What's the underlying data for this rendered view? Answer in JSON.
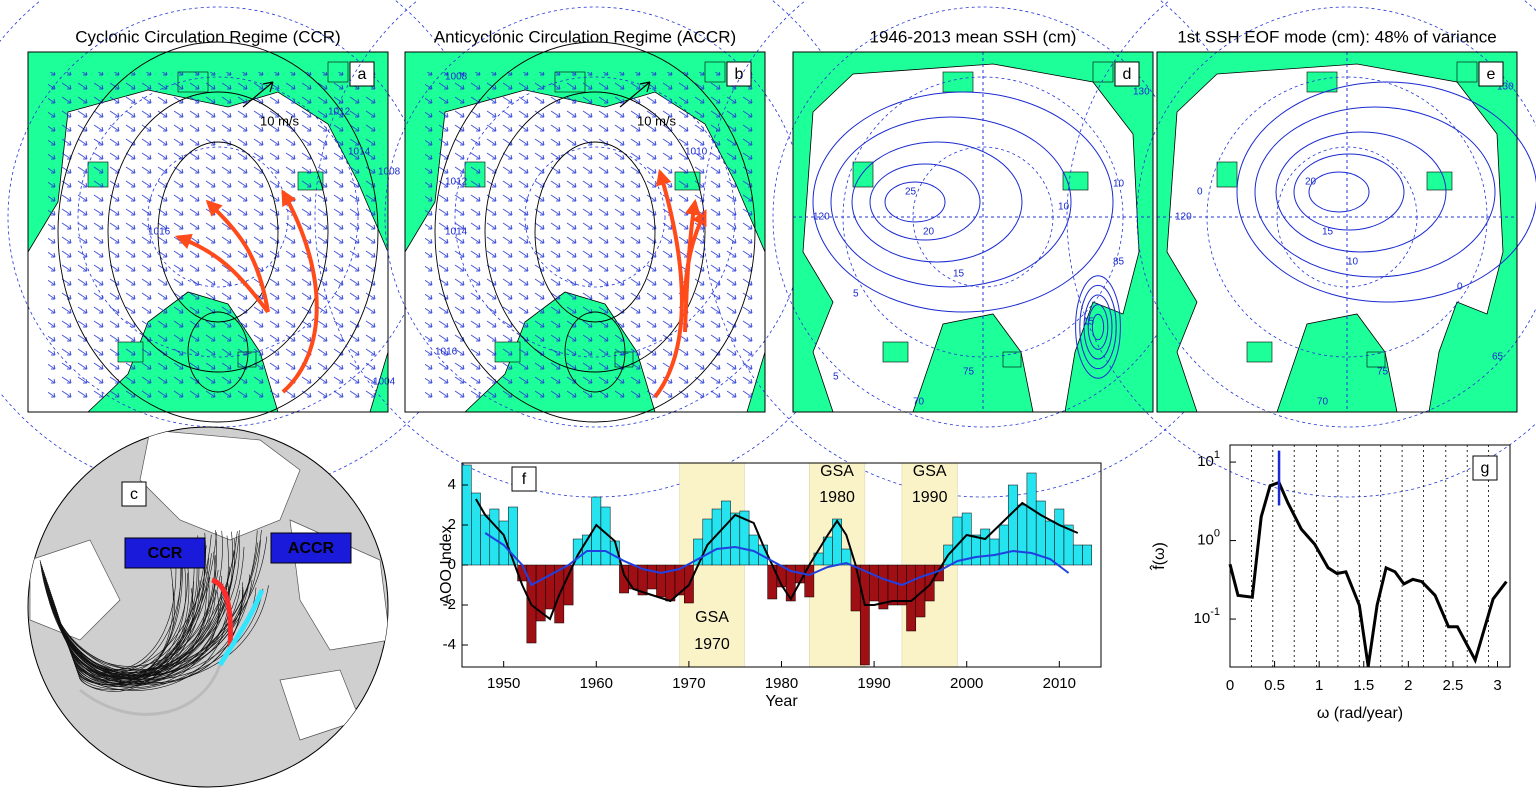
{
  "panels": {
    "a": {
      "title": "Cyclonic Circulation Regime (CCR)",
      "letter": "a",
      "scale_label": "10 m/s",
      "contour_labels": [
        "1012",
        "1016",
        "1008",
        "1004",
        "1014"
      ]
    },
    "b": {
      "title": "Anticyclonic Circulation Regime (ACCR)",
      "letter": "b",
      "scale_label": "10 m/s",
      "contour_labels": [
        "1008",
        "1012",
        "1014",
        "1016",
        "1010"
      ]
    },
    "d": {
      "title": "1946-2013 mean SSH (cm)",
      "letter": "d",
      "contour_labels": [
        "25",
        "20",
        "15",
        "10",
        "10",
        "5",
        "15",
        "5",
        "75",
        "70",
        "130",
        "120",
        "85"
      ]
    },
    "e": {
      "title": "1st SSH EOF mode (cm): 48% of variance",
      "letter": "e",
      "contour_labels": [
        "20",
        "15",
        "10",
        "0",
        "0",
        "75",
        "70",
        "65",
        "130",
        "120"
      ]
    },
    "c": {
      "letter": "c",
      "labels": [
        {
          "text": "CCR",
          "color": "#ff2a2a"
        },
        {
          "text": "ACCR",
          "color": "#33e6ff"
        }
      ]
    }
  },
  "chart_data": [
    {
      "type": "bar",
      "letter": "f",
      "xlabel": "Year",
      "ylabel": "AOO Index",
      "x": [
        1946,
        1947,
        1948,
        1949,
        1950,
        1951,
        1952,
        1953,
        1954,
        1955,
        1956,
        1957,
        1958,
        1959,
        1960,
        1961,
        1962,
        1963,
        1964,
        1965,
        1966,
        1967,
        1968,
        1969,
        1970,
        1971,
        1972,
        1973,
        1974,
        1975,
        1976,
        1977,
        1978,
        1979,
        1980,
        1981,
        1982,
        1983,
        1984,
        1985,
        1986,
        1987,
        1988,
        1989,
        1990,
        1991,
        1992,
        1993,
        1994,
        1995,
        1996,
        1997,
        1998,
        1999,
        2000,
        2001,
        2002,
        2003,
        2004,
        2005,
        2006,
        2007,
        2008,
        2009,
        2010,
        2011,
        2012,
        2013
      ],
      "values": [
        5.0,
        3.6,
        2.5,
        2.8,
        2.2,
        2.9,
        -0.8,
        -3.9,
        -2.8,
        -2.2,
        -2.9,
        -2.0,
        1.3,
        1.5,
        3.4,
        2.9,
        1.2,
        -1.4,
        -1.2,
        -1.5,
        -1.2,
        -1.6,
        -1.8,
        -1.5,
        -1.9,
        1.3,
        2.3,
        2.8,
        3.2,
        2.6,
        2.7,
        1.5,
        1.0,
        -1.7,
        -1.1,
        -1.8,
        -0.9,
        -1.6,
        0.6,
        1.4,
        2.3,
        0.8,
        -2.3,
        -5.0,
        -1.8,
        -2.2,
        -2.0,
        -2.0,
        -3.3,
        -2.6,
        -1.8,
        -0.8,
        1.0,
        2.4,
        2.6,
        1.5,
        1.8,
        1.3,
        2.0,
        4.0,
        3.0,
        4.6,
        3.2,
        2.2,
        2.8,
        2.0,
        1.0,
        1.0
      ],
      "positive_color": "#25e3ef",
      "negative_color": "#a00f14",
      "lines": [
        {
          "color": "#000000",
          "x": [
            1947,
            1948,
            1950,
            1952,
            1953,
            1955,
            1956,
            1958,
            1960,
            1962,
            1963,
            1964,
            1966,
            1968,
            1970,
            1972,
            1974,
            1975,
            1977,
            1978,
            1980,
            1981,
            1983,
            1985,
            1986,
            1987,
            1988,
            1989,
            1990,
            1992,
            1994,
            1996,
            1998,
            2000,
            2002,
            2004,
            2006,
            2008,
            2010,
            2012
          ],
          "values": [
            3.3,
            2.5,
            1.5,
            -1.0,
            -2.0,
            -2.7,
            -1.5,
            0.5,
            2.0,
            1.2,
            -0.5,
            -1.2,
            -1.5,
            -1.8,
            -1.0,
            1.0,
            2.0,
            2.5,
            2.1,
            1.0,
            -1.0,
            -1.7,
            0.0,
            1.5,
            2.2,
            1.5,
            0.0,
            -2.0,
            -2.0,
            -1.8,
            -1.8,
            -1.0,
            0.5,
            1.5,
            1.3,
            2.2,
            3.1,
            2.5,
            2.0,
            1.6
          ]
        },
        {
          "color": "#2040e0",
          "x": [
            1948,
            1950,
            1952,
            1953,
            1955,
            1957,
            1959,
            1961,
            1963,
            1965,
            1967,
            1969,
            1971,
            1973,
            1975,
            1977,
            1979,
            1981,
            1983,
            1985,
            1987,
            1989,
            1991,
            1993,
            1995,
            1997,
            1999,
            2001,
            2003,
            2005,
            2007,
            2009,
            2011
          ],
          "values": [
            1.6,
            1.0,
            0.0,
            -1.0,
            -0.5,
            0.0,
            0.7,
            0.7,
            0.2,
            -0.2,
            -0.4,
            -0.2,
            0.3,
            0.8,
            0.9,
            0.7,
            0.2,
            -0.3,
            -0.5,
            -0.1,
            0.1,
            -0.3,
            -0.7,
            -1.0,
            -0.6,
            -0.3,
            0.2,
            0.4,
            0.5,
            0.7,
            0.6,
            0.3,
            -0.4
          ]
        }
      ],
      "spans": [
        {
          "range": [
            1969,
            1976
          ],
          "text": [
            "GSA",
            "1970"
          ]
        },
        {
          "range": [
            1983,
            1989
          ],
          "text": [
            "GSA",
            "1980"
          ]
        },
        {
          "range": [
            1993,
            1999
          ],
          "text": [
            "GSA",
            "1990"
          ]
        }
      ],
      "span_color": "#fbf3c8",
      "xlim": [
        1945.5,
        2014.5
      ],
      "ylim": [
        -5.1,
        5.1
      ],
      "xticks": [
        1950,
        1960,
        1970,
        1980,
        1990,
        2000,
        2010
      ],
      "yticks": [
        -4,
        -2,
        0,
        2,
        4
      ]
    },
    {
      "type": "line",
      "letter": "g",
      "xlabel": "ω (rad/year)",
      "ylabel": "f̂(ω)",
      "log_y": true,
      "color": "#000000",
      "x": [
        0,
        0.09,
        0.25,
        0.35,
        0.45,
        0.55,
        0.65,
        0.8,
        0.95,
        1.1,
        1.2,
        1.3,
        1.45,
        1.55,
        1.65,
        1.75,
        1.85,
        1.95,
        2.05,
        2.15,
        2.3,
        2.45,
        2.55,
        2.75,
        2.95,
        3.1
      ],
      "values": [
        0.5,
        0.2,
        0.19,
        2.0,
        5.0,
        5.5,
        3.0,
        1.4,
        0.9,
        0.45,
        0.38,
        0.4,
        0.15,
        0.025,
        0.15,
        0.45,
        0.4,
        0.28,
        0.32,
        0.3,
        0.2,
        0.08,
        0.08,
        0.03,
        0.18,
        0.3
      ],
      "marker": {
        "x": 0.55,
        "range": [
          2.8,
          14
        ],
        "color": "#1a2ad0"
      },
      "vlines": [
        0.24,
        0.48,
        0.72,
        0.97,
        1.21,
        1.45,
        1.69,
        1.93,
        2.17,
        2.42,
        2.66,
        2.9
      ],
      "xlim": [
        0,
        3.14
      ],
      "ylim": [
        0.0245,
        16.5
      ],
      "xticks": [
        0,
        0.5,
        1,
        1.5,
        2,
        2.5,
        3
      ],
      "yticks": [
        {
          "value": 0.1,
          "label": "10",
          "exponent": "-1"
        },
        {
          "value": 1,
          "label": "10",
          "exponent": "0"
        },
        {
          "value": 10,
          "label": "10",
          "exponent": "1"
        }
      ]
    }
  ]
}
